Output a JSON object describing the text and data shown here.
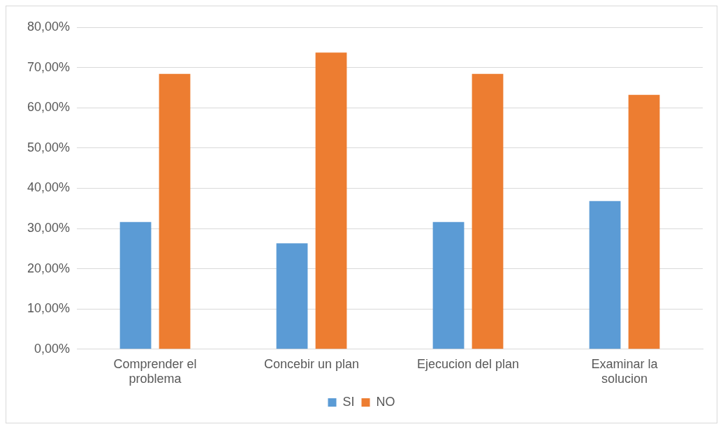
{
  "chart_data": {
    "type": "bar",
    "categories": [
      "Comprender el problema",
      "Concebir un plan",
      "Ejecucion del plan",
      "Examinar la solucion"
    ],
    "series": [
      {
        "name": "SI",
        "color": "#5b9bd5",
        "values": [
          31.6,
          26.3,
          31.6,
          36.8
        ]
      },
      {
        "name": "NO",
        "color": "#ed7d31",
        "values": [
          68.4,
          73.7,
          68.4,
          63.2
        ]
      }
    ],
    "ylim": [
      0,
      80
    ],
    "yticks": [
      {
        "value": 0,
        "label": "0,00%"
      },
      {
        "value": 10,
        "label": "10,00%"
      },
      {
        "value": 20,
        "label": "20,00%"
      },
      {
        "value": 30,
        "label": "30,00%"
      },
      {
        "value": 40,
        "label": "40,00%"
      },
      {
        "value": 50,
        "label": "50,00%"
      },
      {
        "value": 60,
        "label": "60,00%"
      },
      {
        "value": 70,
        "label": "70,00%"
      },
      {
        "value": 80,
        "label": "80,00%"
      }
    ],
    "grid": "y",
    "legend": "bottom"
  }
}
